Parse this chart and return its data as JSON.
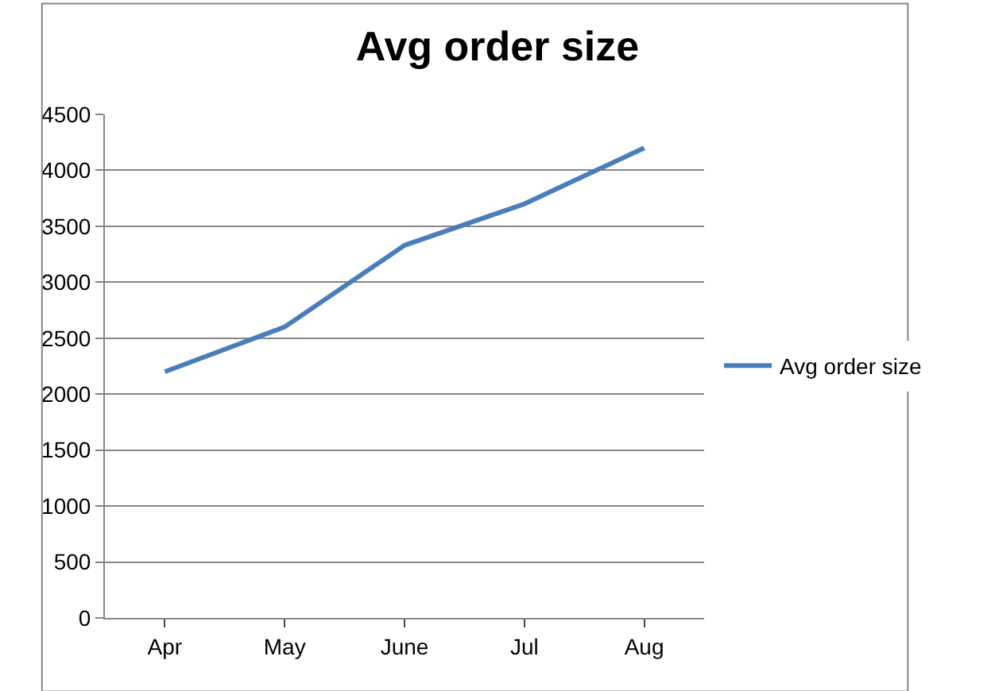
{
  "chart_data": {
    "type": "line",
    "title": "Avg order size",
    "categories": [
      "Apr",
      "May",
      "June",
      "Jul",
      "Aug"
    ],
    "series": [
      {
        "name": "Avg order size",
        "color": "#4a7ebb",
        "values": [
          2200,
          2600,
          3330,
          3700,
          4200
        ]
      }
    ],
    "ylim": [
      0,
      4500
    ],
    "yticks": [
      0,
      500,
      1000,
      1500,
      2000,
      2500,
      3000,
      3500,
      4000,
      4500
    ],
    "grid": "y",
    "legend": "right",
    "marker": "none",
    "line_style": "solid"
  }
}
